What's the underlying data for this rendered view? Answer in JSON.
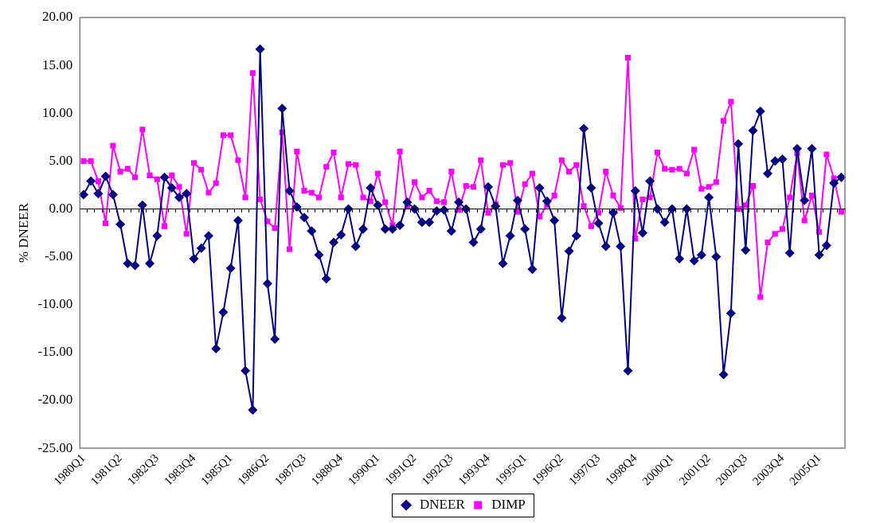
{
  "chart_data": {
    "type": "line",
    "ylabel": "% DNEER",
    "categories": [
      "1980Q1",
      null,
      null,
      null,
      null,
      "1981Q2",
      null,
      null,
      null,
      null,
      "1982Q3",
      null,
      null,
      null,
      null,
      "1983Q4",
      null,
      null,
      null,
      null,
      "1985Q1",
      null,
      null,
      null,
      null,
      "1986Q2",
      null,
      null,
      null,
      null,
      "1987Q3",
      null,
      null,
      null,
      null,
      "1988Q4",
      null,
      null,
      null,
      null,
      "1990Q1",
      null,
      null,
      null,
      null,
      "1991Q2",
      null,
      null,
      null,
      null,
      "1992Q3",
      null,
      null,
      null,
      null,
      "1993Q4",
      null,
      null,
      null,
      null,
      "1995Q1",
      null,
      null,
      null,
      null,
      "1996Q2",
      null,
      null,
      null,
      null,
      "1997Q3",
      null,
      null,
      null,
      null,
      "1998Q4",
      null,
      null,
      null,
      null,
      "2000Q1",
      null,
      null,
      null,
      null,
      "2001Q2",
      null,
      null,
      null,
      null,
      "2002Q3",
      null,
      null,
      null,
      null,
      "2003Q4",
      null,
      null,
      null,
      null,
      "2005Q1",
      null,
      null,
      null
    ],
    "series": [
      {
        "name": "DNEER",
        "color": "#000080",
        "marker": "diamond",
        "values": [
          1.5,
          2.9,
          1.6,
          3.4,
          1.5,
          -1.6,
          -5.7,
          -5.9,
          0.4,
          -5.7,
          -2.8,
          3.3,
          2.2,
          1.2,
          1.6,
          -5.2,
          -4.1,
          -2.8,
          -14.6,
          -10.8,
          -6.2,
          -1.2,
          -16.9,
          -21.0,
          16.7,
          -7.8,
          -13.6,
          10.5,
          1.9,
          0.2,
          -0.9,
          -2.3,
          -4.8,
          -7.3,
          -3.5,
          -2.7,
          0.0,
          -3.9,
          -2.1,
          2.2,
          0.4,
          -2.1,
          -2.1,
          -1.7,
          0.7,
          0.0,
          -1.4,
          -1.4,
          -0.2,
          -0.1,
          -2.3,
          0.7,
          0.0,
          -3.5,
          -2.1,
          2.3,
          0.3,
          -5.7,
          -2.8,
          0.9,
          -2.1,
          -6.3,
          2.2,
          0.8,
          -1.2,
          -11.4,
          -4.4,
          -2.8,
          8.4,
          2.2,
          -1.5,
          -3.9,
          -0.4,
          -3.9,
          -16.9,
          1.9,
          -2.5,
          2.9,
          0.0,
          -1.4,
          0.0,
          -5.2,
          0.0,
          -5.4,
          -4.8,
          1.2,
          -5.0,
          -17.3,
          -10.9,
          6.8,
          -4.3,
          8.2,
          10.2,
          3.7,
          5.0,
          5.2,
          -4.6,
          6.3,
          0.9,
          6.3,
          -4.8,
          -3.8,
          2.7,
          3.3
        ]
      },
      {
        "name": "DIMP",
        "color": "#ff00ff",
        "marker": "square",
        "values": [
          5.0,
          5.0,
          2.9,
          -1.5,
          6.6,
          3.9,
          4.2,
          3.3,
          8.3,
          3.5,
          3.1,
          -1.8,
          3.5,
          2.3,
          -2.6,
          4.8,
          4.1,
          1.7,
          2.7,
          7.7,
          7.7,
          5.1,
          1.2,
          14.2,
          1.0,
          -1.3,
          -2.0,
          8.0,
          -4.2,
          6.0,
          1.9,
          1.7,
          1.2,
          4.4,
          5.9,
          1.2,
          4.7,
          4.6,
          1.2,
          0.8,
          3.7,
          0.7,
          -1.7,
          6.0,
          0.3,
          2.8,
          1.2,
          1.9,
          0.8,
          0.7,
          3.9,
          -0.1,
          2.4,
          2.3,
          5.1,
          -0.4,
          0.5,
          4.6,
          4.8,
          -0.3,
          2.6,
          3.7,
          -0.8,
          0.4,
          1.4,
          5.1,
          3.9,
          4.6,
          0.3,
          -1.8,
          -0.4,
          3.9,
          1.4,
          0.1,
          15.8,
          -3.1,
          1.0,
          1.2,
          5.9,
          4.2,
          4.1,
          4.2,
          3.7,
          6.2,
          2.1,
          2.3,
          2.8,
          9.2,
          11.2,
          0.0,
          0.4,
          2.4,
          -9.2,
          -3.5,
          -2.6,
          -2.1,
          1.2,
          5.8,
          -1.2,
          1.4,
          -2.4,
          5.7,
          3.2,
          -0.3
        ]
      }
    ],
    "ylim": [
      -25,
      20
    ],
    "yticks": [
      {
        "value": -25,
        "label": "-25.00"
      },
      {
        "value": -20,
        "label": "-20.00"
      },
      {
        "value": -15,
        "label": "-15.00"
      },
      {
        "value": -10,
        "label": "-10.00"
      },
      {
        "value": -5,
        "label": "-5.00"
      },
      {
        "value": 0,
        "label": "0.00"
      },
      {
        "value": 5,
        "label": "5.00"
      },
      {
        "value": 10,
        "label": "10.00"
      },
      {
        "value": 15,
        "label": "15.00"
      },
      {
        "value": 20,
        "label": "20.00"
      }
    ],
    "ref_lines": [
      {
        "axis": "y",
        "value": 0,
        "color": "#000000"
      }
    ],
    "grid": false,
    "legend": "bottom",
    "line_style": "solid"
  }
}
